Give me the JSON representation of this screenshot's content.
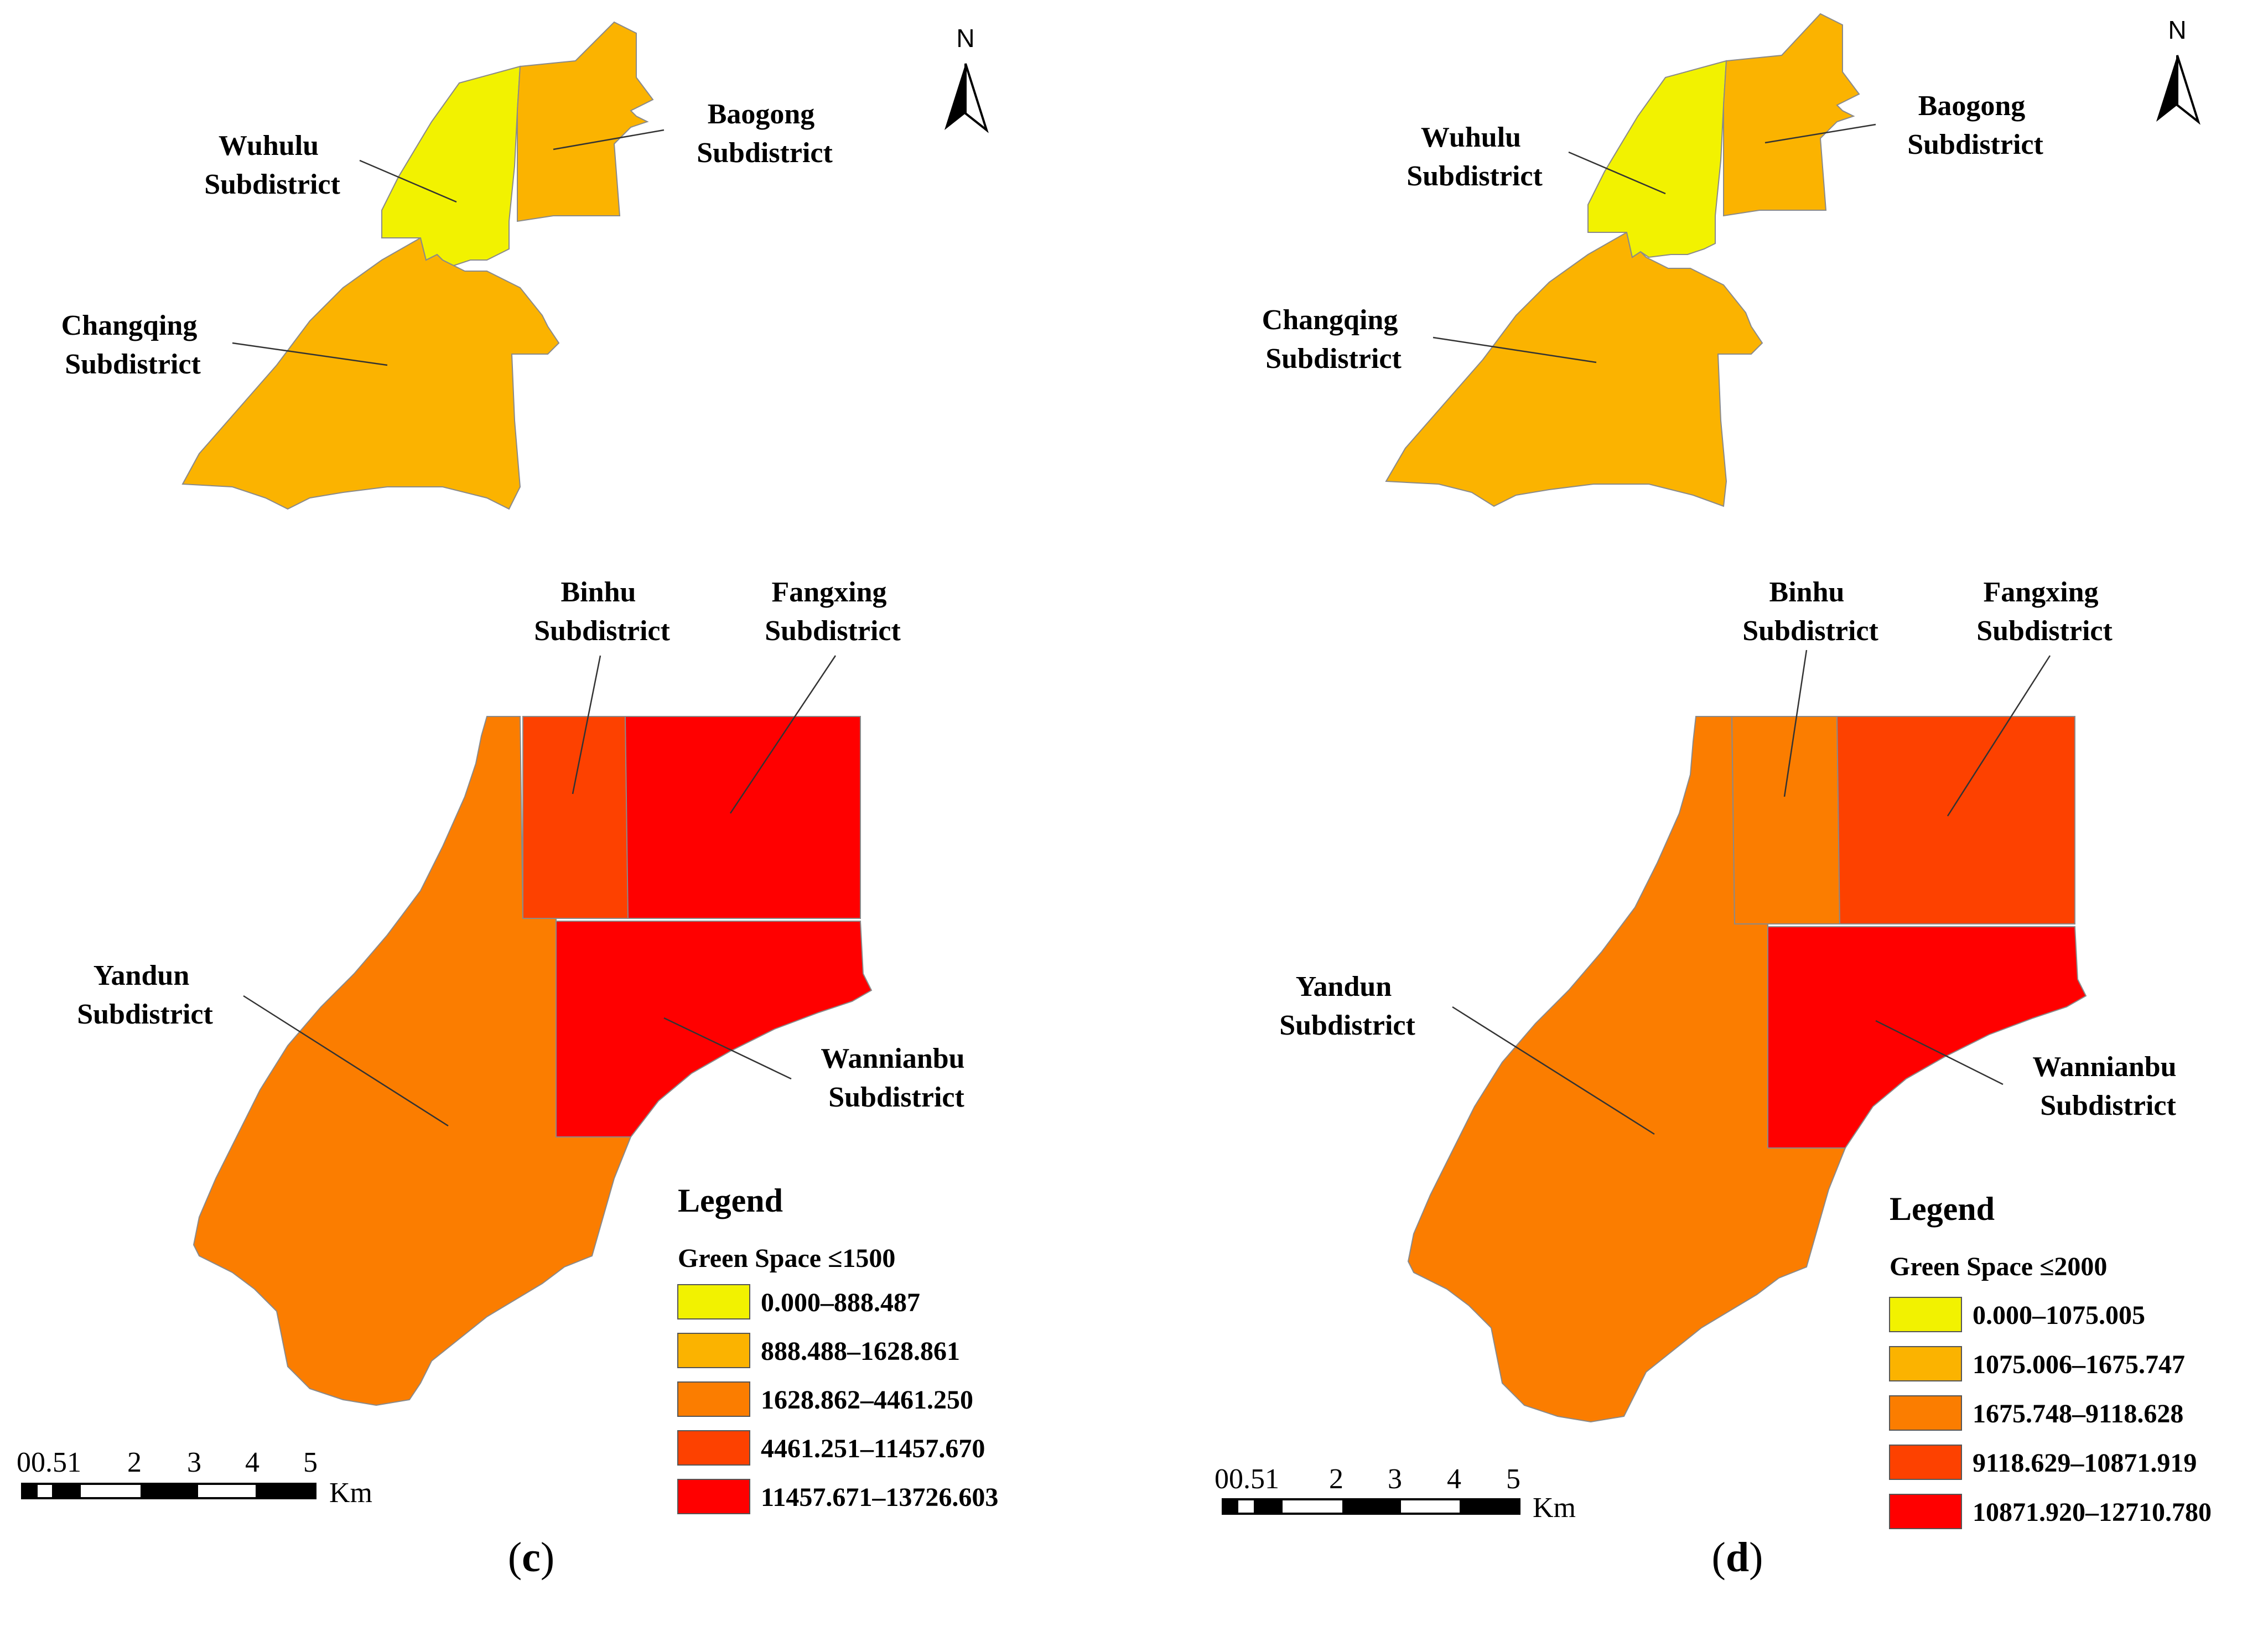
{
  "colors": {
    "class1": "#f2f200",
    "class2": "#fbb300",
    "class3": "#fb7d00",
    "class4": "#fd4100",
    "class5": "#ff0000"
  },
  "panels": [
    {
      "caption_open": "(",
      "caption_letter": "c",
      "caption_close": ")",
      "north_label": "N",
      "labels": {
        "wuhulu": [
          "Wuhulu",
          "Subdistrict"
        ],
        "baogong": [
          "Baogong",
          "Subdistrict"
        ],
        "changqing": [
          "Changqing",
          "Subdistrict"
        ],
        "binhu": [
          "Binhu",
          "Subdistrict"
        ],
        "fangxing": [
          "Fangxing",
          "Subdistrict"
        ],
        "yandun": [
          "Yandun",
          "Subdistrict"
        ],
        "wannianbu": [
          "Wannianbu",
          "Subdistrict"
        ]
      },
      "region_class": {
        "wuhulu": 1,
        "baogong": 2,
        "changqing": 2,
        "binhu": 4,
        "fangxing": 5,
        "yandun": 3,
        "wannianbu": 5
      },
      "legend": {
        "title": "Legend",
        "subtitle": "Green Space ≤1500",
        "items": [
          {
            "label": "0.000–888.487",
            "color": "#f2f200"
          },
          {
            "label": "888.488–1628.861",
            "color": "#fbb300"
          },
          {
            "label": "1628.862–4461.250",
            "color": "#fb7d00"
          },
          {
            "label": "4461.251–11457.670",
            "color": "#fd4100"
          },
          {
            "label": "11457.671–13726.603",
            "color": "#ff0000"
          }
        ]
      },
      "scale": {
        "ticks": [
          "0",
          "0.5",
          "1",
          "2",
          "3",
          "4",
          "5"
        ],
        "ticks_text": [
          "00.51",
          "2",
          "3",
          "4",
          "5"
        ],
        "unit": "Km"
      }
    },
    {
      "caption_open": "(",
      "caption_letter": "d",
      "caption_close": ")",
      "north_label": "N",
      "labels": {
        "wuhulu": [
          "Wuhulu",
          "Subdistrict"
        ],
        "baogong": [
          "Baogong",
          "Subdistrict"
        ],
        "changqing": [
          "Changqing",
          "Subdistrict"
        ],
        "binhu": [
          "Binhu",
          "Subdistrict"
        ],
        "fangxing": [
          "Fangxing",
          "Subdistrict"
        ],
        "yandun": [
          "Yandun",
          "Subdistrict"
        ],
        "wannianbu": [
          "Wannianbu",
          "Subdistrict"
        ]
      },
      "region_class": {
        "wuhulu": 1,
        "baogong": 2,
        "changqing": 2,
        "binhu": 3,
        "fangxing": 4,
        "yandun": 3,
        "wannianbu": 5
      },
      "legend": {
        "title": "Legend",
        "subtitle": "Green Space ≤2000",
        "items": [
          {
            "label": "0.000–1075.005",
            "color": "#f2f200"
          },
          {
            "label": "1075.006–1675.747",
            "color": "#fbb300"
          },
          {
            "label": "1675.748–9118.628",
            "color": "#fb7d00"
          },
          {
            "label": "9118.629–10871.919",
            "color": "#fd4100"
          },
          {
            "label": "10871.920–12710.780",
            "color": "#ff0000"
          }
        ]
      },
      "scale": {
        "ticks_text": [
          "00.51",
          "2",
          "3",
          "4",
          "5"
        ],
        "unit": "Km"
      }
    }
  ]
}
